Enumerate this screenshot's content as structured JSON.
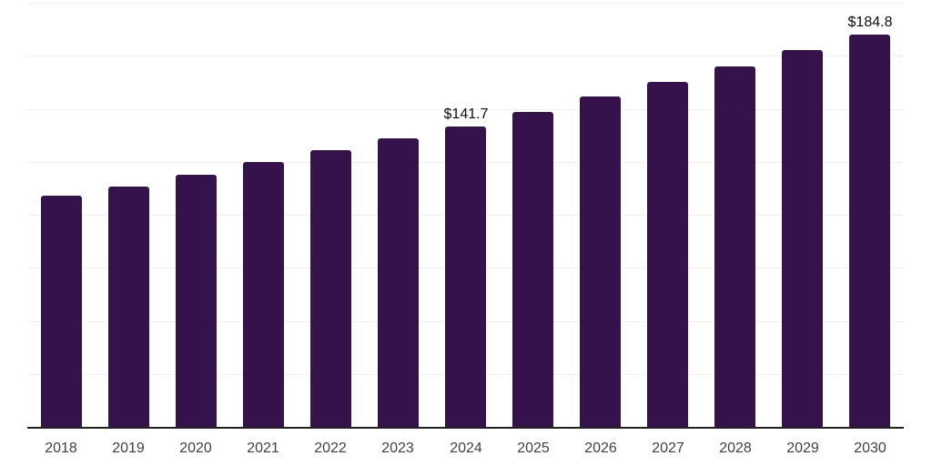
{
  "chart_data": {
    "type": "bar",
    "title": "",
    "xlabel": "",
    "ylabel": "",
    "categories": [
      "2018",
      "2019",
      "2020",
      "2021",
      "2022",
      "2023",
      "2024",
      "2025",
      "2026",
      "2027",
      "2028",
      "2029",
      "2030"
    ],
    "values": [
      109.0,
      113.4,
      118.9,
      124.8,
      130.5,
      136.2,
      141.7,
      148.4,
      155.8,
      162.8,
      170.0,
      177.5,
      184.8
    ],
    "data_labels": [
      "",
      "",
      "",
      "",
      "",
      "",
      "$141.7",
      "",
      "",
      "",
      "",
      "",
      "$184.8"
    ],
    "ylim": [
      0,
      200
    ],
    "grid_step": 25,
    "grid": true,
    "legend": false,
    "y_tick_labels_visible": false,
    "colors": {
      "bar": "#35124B",
      "gridline": "#F0F0F0",
      "axis_line": "#212121",
      "tick_label": "#404040",
      "data_label": "#0D0D0D",
      "background": "#FFFFFF"
    }
  }
}
